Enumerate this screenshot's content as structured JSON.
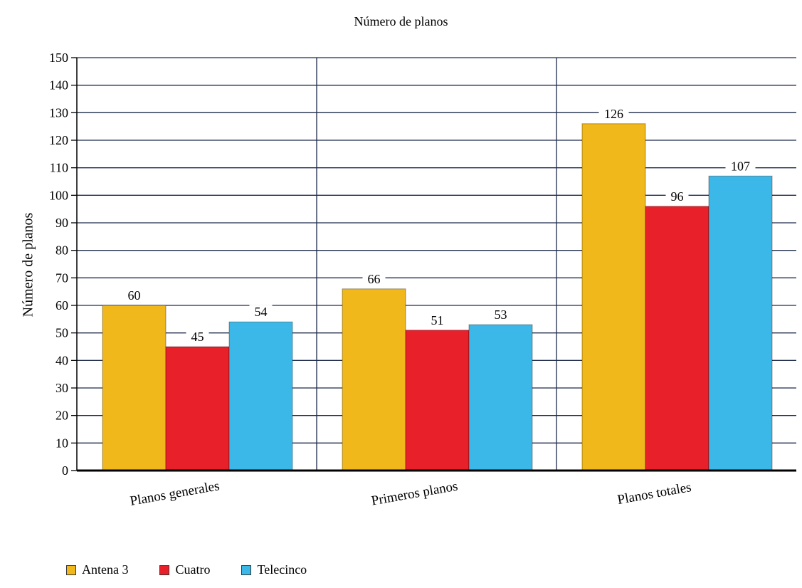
{
  "chart_data": {
    "type": "bar",
    "title": "Número de planos",
    "ylabel": "Número de planos",
    "xlabel": "",
    "ylim": [
      0,
      150
    ],
    "ytick_step": 10,
    "grid": true,
    "legend_position": "bottom-left",
    "categories": [
      "Planos generales",
      "Primeros planos",
      "Planos totales"
    ],
    "series": [
      {
        "name": "Antena 3",
        "color": "#F0B81B",
        "values": [
          60,
          66,
          126
        ]
      },
      {
        "name": "Cuatro",
        "color": "#E8202A",
        "values": [
          45,
          51,
          96
        ]
      },
      {
        "name": "Telecinco",
        "color": "#3BB8E8",
        "values": [
          54,
          53,
          107
        ]
      }
    ]
  }
}
